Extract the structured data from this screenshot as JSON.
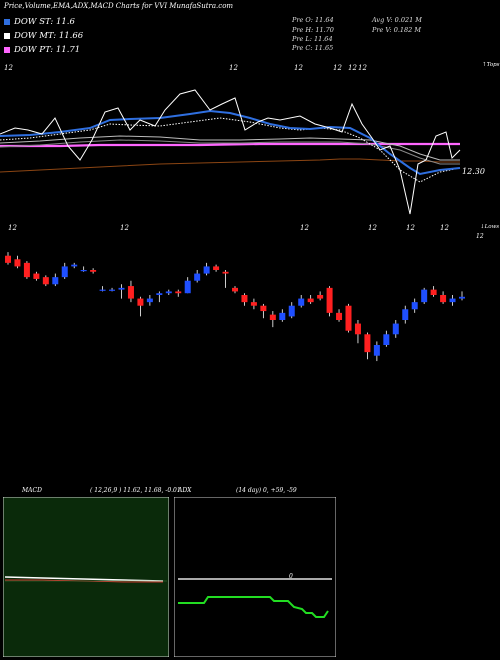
{
  "header": {
    "title": "Price,Volume,EMA,ADX,MACD Charts for VVI MunafaSutra.com"
  },
  "legend": [
    {
      "label": "DOW ST: 11.6",
      "color": "#2f6fe0"
    },
    {
      "label": "DOW MT: 11.66",
      "color": "#ffffff"
    },
    {
      "label": "DOW PT: 11.71",
      "color": "#ff66ff"
    }
  ],
  "quote": {
    "prev_open": "Pre   O: 11.64",
    "prev_high": "Pre   H: 11.70",
    "prev_low": "Pre   L: 11.64",
    "prev_close": "Pre   C: 11.65",
    "avg_volume": "Avg V: 0.021 M",
    "prev_volume": "Pre   V: 0.182  M"
  },
  "panels": {
    "macd_label": "MACD",
    "macd_params": "( 12,26,9 ) 11.62,  11.68,  -0.01",
    "adx_label": "ADX",
    "adx_params": "(14  day) 0,  +59,  -59"
  },
  "colors": {
    "up": "#1f4fff",
    "down": "#ff2020",
    "ema_short": "#2f6fe0",
    "ema_mid": "#ffffff",
    "ema_long": "#ff66ff",
    "brown": "#8b4513",
    "adx_green": "#22dd22",
    "macd_bg": "#0a2a0a"
  },
  "chart_data": [
    {
      "type": "line",
      "title": "",
      "price_label": "12.30",
      "top_label": "↑Tops",
      "bottom_label": "↓Lows",
      "lows_value_label": "12",
      "top_tick_labels": [
        "12",
        "12",
        "12",
        "12",
        "12",
        "12"
      ],
      "bottom_tick_labels": [
        "12",
        "12",
        "12",
        "12",
        "12",
        "12"
      ],
      "dow_levels": {
        "ST": 11.6,
        "MT": 11.66,
        "PT": 11.71
      }
    },
    {
      "type": "candlestick",
      "candles": [
        {
          "o": 0.64,
          "c": 0.6,
          "h": 0.66,
          "l": 0.59
        },
        {
          "o": 0.62,
          "c": 0.58,
          "h": 0.64,
          "l": 0.57
        },
        {
          "o": 0.6,
          "c": 0.52,
          "h": 0.61,
          "l": 0.51
        },
        {
          "o": 0.54,
          "c": 0.51,
          "h": 0.55,
          "l": 0.5
        },
        {
          "o": 0.52,
          "c": 0.48,
          "h": 0.53,
          "l": 0.47
        },
        {
          "o": 0.48,
          "c": 0.52,
          "h": 0.54,
          "l": 0.47
        },
        {
          "o": 0.52,
          "c": 0.58,
          "h": 0.6,
          "l": 0.51
        },
        {
          "o": 0.58,
          "c": 0.59,
          "h": 0.6,
          "l": 0.57
        },
        {
          "o": 0.56,
          "c": 0.56,
          "h": 0.58,
          "l": 0.55
        },
        {
          "o": 0.56,
          "c": 0.55,
          "h": 0.57,
          "l": 0.54
        },
        {
          "o": 0.45,
          "c": 0.45,
          "h": 0.47,
          "l": 0.44
        },
        {
          "o": 0.45,
          "c": 0.45,
          "h": 0.46,
          "l": 0.44
        },
        {
          "o": 0.45,
          "c": 0.46,
          "h": 0.48,
          "l": 0.4
        },
        {
          "o": 0.47,
          "c": 0.4,
          "h": 0.5,
          "l": 0.38
        },
        {
          "o": 0.4,
          "c": 0.36,
          "h": 0.41,
          "l": 0.3
        },
        {
          "o": 0.38,
          "c": 0.4,
          "h": 0.42,
          "l": 0.36
        },
        {
          "o": 0.42,
          "c": 0.43,
          "h": 0.44,
          "l": 0.38
        },
        {
          "o": 0.43,
          "c": 0.44,
          "h": 0.45,
          "l": 0.42
        },
        {
          "o": 0.44,
          "c": 0.43,
          "h": 0.45,
          "l": 0.41
        },
        {
          "o": 0.43,
          "c": 0.5,
          "h": 0.52,
          "l": 0.43
        },
        {
          "o": 0.5,
          "c": 0.54,
          "h": 0.56,
          "l": 0.49
        },
        {
          "o": 0.54,
          "c": 0.58,
          "h": 0.6,
          "l": 0.53
        },
        {
          "o": 0.58,
          "c": 0.56,
          "h": 0.59,
          "l": 0.55
        },
        {
          "o": 0.55,
          "c": 0.54,
          "h": 0.56,
          "l": 0.46
        },
        {
          "o": 0.46,
          "c": 0.44,
          "h": 0.47,
          "l": 0.43
        },
        {
          "o": 0.42,
          "c": 0.38,
          "h": 0.43,
          "l": 0.36
        },
        {
          "o": 0.38,
          "c": 0.36,
          "h": 0.4,
          "l": 0.34
        },
        {
          "o": 0.36,
          "c": 0.33,
          "h": 0.37,
          "l": 0.29
        },
        {
          "o": 0.31,
          "c": 0.28,
          "h": 0.33,
          "l": 0.24
        },
        {
          "o": 0.28,
          "c": 0.32,
          "h": 0.34,
          "l": 0.27
        },
        {
          "o": 0.3,
          "c": 0.36,
          "h": 0.38,
          "l": 0.29
        },
        {
          "o": 0.36,
          "c": 0.4,
          "h": 0.42,
          "l": 0.35
        },
        {
          "o": 0.4,
          "c": 0.38,
          "h": 0.42,
          "l": 0.37
        },
        {
          "o": 0.42,
          "c": 0.4,
          "h": 0.44,
          "l": 0.39
        },
        {
          "o": 0.46,
          "c": 0.32,
          "h": 0.47,
          "l": 0.3
        },
        {
          "o": 0.32,
          "c": 0.28,
          "h": 0.34,
          "l": 0.27
        },
        {
          "o": 0.36,
          "c": 0.22,
          "h": 0.37,
          "l": 0.21
        },
        {
          "o": 0.26,
          "c": 0.2,
          "h": 0.28,
          "l": 0.15
        },
        {
          "o": 0.2,
          "c": 0.1,
          "h": 0.21,
          "l": 0.06
        },
        {
          "o": 0.08,
          "c": 0.14,
          "h": 0.16,
          "l": 0.05
        },
        {
          "o": 0.14,
          "c": 0.2,
          "h": 0.22,
          "l": 0.13
        },
        {
          "o": 0.2,
          "c": 0.26,
          "h": 0.28,
          "l": 0.18
        },
        {
          "o": 0.28,
          "c": 0.34,
          "h": 0.36,
          "l": 0.26
        },
        {
          "o": 0.34,
          "c": 0.38,
          "h": 0.4,
          "l": 0.32
        },
        {
          "o": 0.38,
          "c": 0.45,
          "h": 0.46,
          "l": 0.37
        },
        {
          "o": 0.45,
          "c": 0.42,
          "h": 0.47,
          "l": 0.41
        },
        {
          "o": 0.42,
          "c": 0.38,
          "h": 0.44,
          "l": 0.37
        },
        {
          "o": 0.38,
          "c": 0.4,
          "h": 0.42,
          "l": 0.36
        },
        {
          "o": 0.4,
          "c": 0.41,
          "h": 0.44,
          "l": 0.39
        }
      ]
    }
  ]
}
